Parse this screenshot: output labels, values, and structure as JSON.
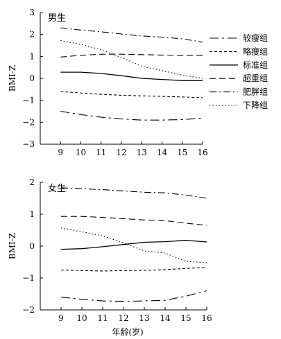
{
  "chart_data": [
    {
      "type": "line",
      "panel_label": "男生",
      "ylabel": "BMI-Z",
      "xlabel": "",
      "x": [
        9,
        10,
        11,
        12,
        13,
        14,
        15,
        16
      ],
      "xlim": [
        8,
        16
      ],
      "ylim": [
        -3,
        3
      ],
      "yticks": [
        -3,
        -2,
        -1,
        0,
        1,
        2,
        3
      ],
      "grid": false,
      "series": [
        {
          "name": "较瘦组",
          "style": "dashdot-long",
          "values": [
            -1.5,
            -1.65,
            -1.77,
            -1.85,
            -1.9,
            -1.9,
            -1.88,
            -1.82
          ]
        },
        {
          "name": "略瘦组",
          "style": "short-dash",
          "values": [
            -0.6,
            -0.67,
            -0.73,
            -0.77,
            -0.8,
            -0.82,
            -0.85,
            -0.88
          ]
        },
        {
          "name": "标准组",
          "style": "solid",
          "values": [
            0.28,
            0.28,
            0.22,
            0.12,
            0.0,
            -0.05,
            -0.1,
            -0.1
          ]
        },
        {
          "name": "超重组",
          "style": "long-dash",
          "values": [
            0.97,
            1.05,
            1.1,
            1.1,
            1.08,
            1.06,
            1.05,
            1.05
          ]
        },
        {
          "name": "肥胖组",
          "style": "dashdot",
          "values": [
            2.3,
            2.2,
            2.12,
            2.02,
            1.93,
            1.88,
            1.8,
            1.65
          ]
        },
        {
          "name": "下降组",
          "style": "dotted",
          "values": [
            1.72,
            1.55,
            1.3,
            0.95,
            0.55,
            0.35,
            0.15,
            0.0
          ]
        }
      ]
    },
    {
      "type": "line",
      "panel_label": "女生",
      "ylabel": "BMI-Z",
      "xlabel": "年龄(岁)",
      "x": [
        9,
        10,
        11,
        12,
        13,
        14,
        15,
        16
      ],
      "xlim": [
        8,
        16
      ],
      "ylim": [
        -2,
        2
      ],
      "yticks": [
        -2,
        -1,
        0,
        1,
        2
      ],
      "grid": false,
      "series": [
        {
          "name": "较瘦组",
          "style": "dashdot-long",
          "values": [
            -1.6,
            -1.67,
            -1.72,
            -1.73,
            -1.72,
            -1.7,
            -1.57,
            -1.4
          ]
        },
        {
          "name": "略瘦组",
          "style": "short-dash",
          "values": [
            -0.75,
            -0.77,
            -0.78,
            -0.77,
            -0.76,
            -0.74,
            -0.7,
            -0.67
          ]
        },
        {
          "name": "标准组",
          "style": "solid",
          "values": [
            -0.1,
            -0.08,
            -0.02,
            0.05,
            0.12,
            0.14,
            0.18,
            0.13
          ]
        },
        {
          "name": "超重组",
          "style": "long-dash",
          "values": [
            0.93,
            0.93,
            0.9,
            0.86,
            0.82,
            0.8,
            0.72,
            0.65
          ]
        },
        {
          "name": "肥胖组",
          "style": "dashdot",
          "values": [
            1.83,
            1.8,
            1.77,
            1.73,
            1.69,
            1.67,
            1.6,
            1.5
          ]
        },
        {
          "name": "下降组",
          "style": "dotted",
          "values": [
            0.57,
            0.45,
            0.32,
            0.1,
            -0.15,
            -0.22,
            -0.48,
            -0.52
          ]
        }
      ]
    }
  ]
}
